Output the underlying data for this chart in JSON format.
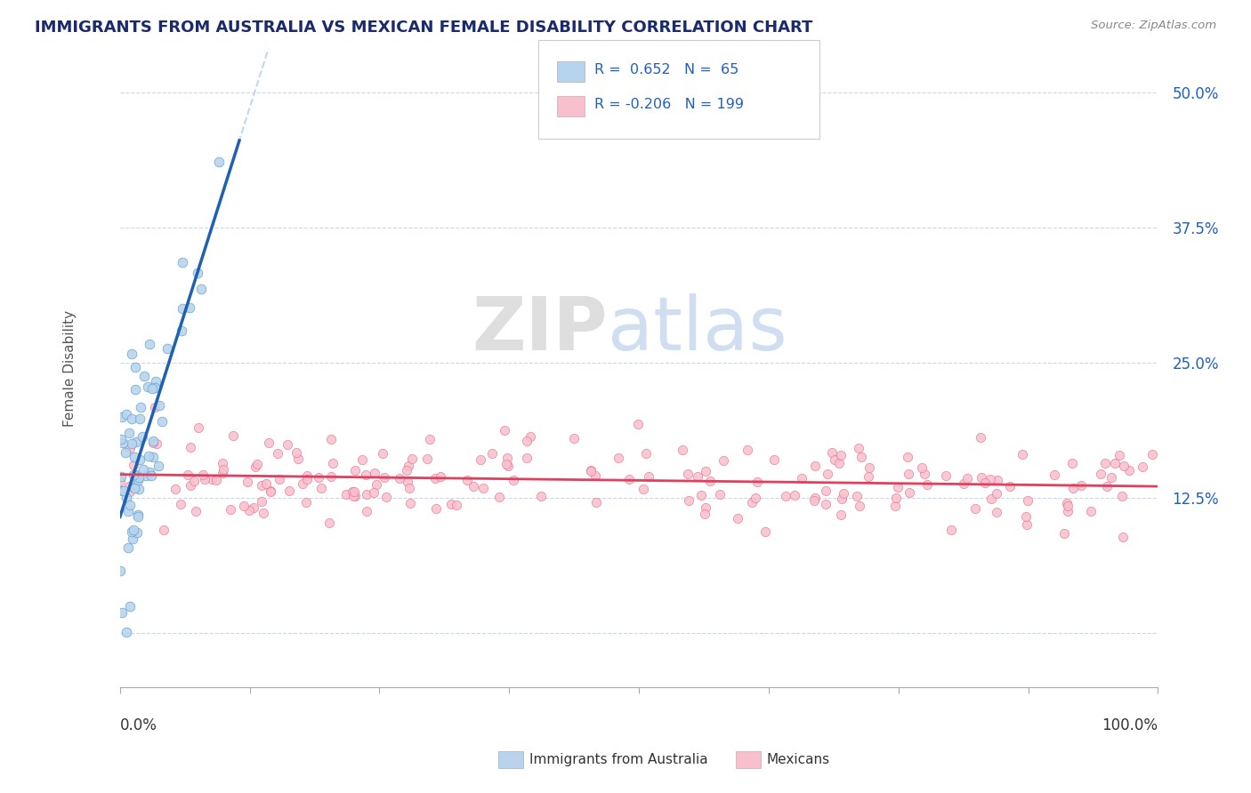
{
  "title": "IMMIGRANTS FROM AUSTRALIA VS MEXICAN FEMALE DISABILITY CORRELATION CHART",
  "source_text": "Source: ZipAtlas.com",
  "ylabel": "Female Disability",
  "yticks": [
    0.0,
    0.125,
    0.25,
    0.375,
    0.5
  ],
  "ytick_labels": [
    "",
    "12.5%",
    "25.0%",
    "37.5%",
    "50.0%"
  ],
  "xlim": [
    0.0,
    1.0
  ],
  "ylim": [
    -0.05,
    0.54
  ],
  "r_blue": 0.652,
  "n_blue": 65,
  "r_pink": -0.206,
  "n_pink": 199,
  "watermark_zip": "ZIP",
  "watermark_atlas": "atlas",
  "blue_fill_color": "#b8d4ec",
  "blue_edge_color": "#5a9fd4",
  "blue_line_color": "#2060b0",
  "pink_fill_color": "#f8c0cc",
  "pink_edge_color": "#e87090",
  "pink_line_color": "#e04060",
  "title_color": "#1a2a6b",
  "source_color": "#888888",
  "legend_color": "#2060c0",
  "grid_color": "#c8d8e8",
  "background_color": "#ffffff",
  "seed_blue": 7,
  "seed_pink": 13
}
